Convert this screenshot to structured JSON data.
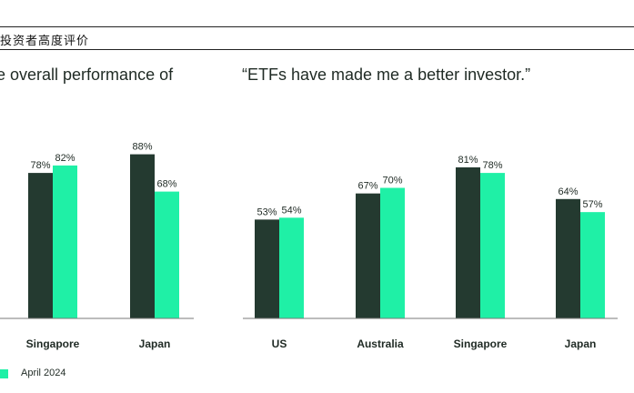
{
  "header": {
    "title": "投资者高度评价"
  },
  "colors": {
    "dark": "#243a30",
    "green": "#1ff0a6",
    "text": "#1f2a24"
  },
  "chart_data": [
    {
      "type": "bar",
      "title": "e overall performance of",
      "categories": [
        "Singapore",
        "Japan"
      ],
      "series": [
        {
          "values": [
            78,
            88
          ]
        },
        {
          "name": "April 2024",
          "values": [
            82,
            68
          ]
        }
      ],
      "value_labels": [
        [
          "78%",
          "88%"
        ],
        [
          "82%",
          "68%"
        ]
      ],
      "ylim": [
        0,
        100
      ]
    },
    {
      "type": "bar",
      "title": "“ETFs have made me a better investor.”",
      "categories": [
        "US",
        "Australia",
        "Singapore",
        "Japan"
      ],
      "series": [
        {
          "values": [
            53,
            67,
            81,
            64
          ]
        },
        {
          "name": "April 2024",
          "values": [
            54,
            70,
            78,
            57
          ]
        }
      ],
      "value_labels": [
        [
          "53%",
          "67%",
          "81%",
          "64%"
        ],
        [
          "54%",
          "70%",
          "78%",
          "57%"
        ]
      ],
      "ylim": [
        0,
        100
      ]
    }
  ],
  "legend": {
    "label": "April 2024"
  }
}
